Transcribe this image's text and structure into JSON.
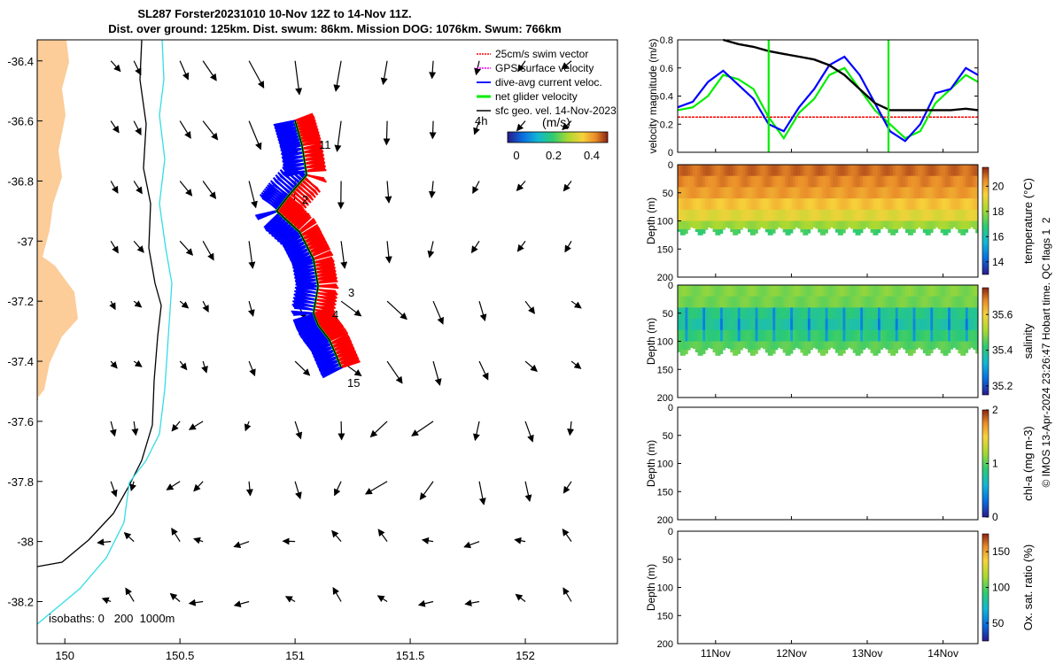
{
  "title": {
    "line1": "SL287 Forster20231010 10-Nov 12Z to 14-Nov 11Z.",
    "line2": "Dist. over ground: 125km. Dist. swum: 86km. Mission DOG: 1076km. Swum: 766km"
  },
  "credit": "© IMOS 13-Apr-2024 23:26:47 Hobart time. QC flags 1  2",
  "colors": {
    "land": "#fccc99",
    "isobath_0": "#000000",
    "isobath_200": "#000000",
    "isobath_1000": "#33dde6",
    "swim": "#ff0000",
    "gps": "#ff00ff",
    "current": "#0000ff",
    "net": "#00ee00",
    "geo": "#000000"
  },
  "chart_data": [
    {
      "type": "map",
      "xlim": [
        149.88,
        152.4
      ],
      "ylim": [
        -38.34,
        -36.33
      ],
      "xticks": [
        "150",
        "150.5",
        "151",
        "151.5",
        "152"
      ],
      "yticks": [
        "-36.4",
        "-36.6",
        "-36.8",
        "-37",
        "-37.2",
        "-37.4",
        "-37.6",
        "-37.8",
        "-38",
        "-38.2"
      ],
      "legend": {
        "placement": "top-right",
        "entries": [
          {
            "label": "25cm/s swim vector",
            "color": "#ff0000"
          },
          {
            "label": "GPS surface velocity",
            "color": "#ff00ff"
          },
          {
            "label": "dive-avg current veloc.",
            "color": "#0000ff"
          },
          {
            "label": "net glider velocity",
            "color": "#00ee00"
          },
          {
            "label": "sfc geo. vel. 14-Nov-2023",
            "color": "#000000"
          }
        ]
      },
      "colorbar": {
        "label": "(m/s)",
        "ticks": [
          "0",
          "0.2",
          "0.4"
        ],
        "range": [
          0,
          0.5
        ]
      },
      "isobath_label": "isobaths: 0   200  1000m",
      "annotations": [
        "11",
        "2",
        "3",
        "4",
        "15",
        "4h"
      ],
      "track": {
        "lon": [
          151.0,
          151.03,
          151.05,
          150.97,
          150.92,
          151.02,
          151.08,
          151.1,
          151.08,
          151.1,
          151.15,
          151.2
        ],
        "lat": [
          -36.6,
          -36.68,
          -36.78,
          -36.85,
          -36.9,
          -36.97,
          -37.06,
          -37.15,
          -37.24,
          -37.28,
          -37.33,
          -37.42
        ]
      },
      "arrow_grid": {
        "lon": [
          150.2,
          150.3,
          150.5,
          150.6,
          150.8,
          151.0,
          151.2,
          151.4,
          151.6,
          151.8,
          152.0,
          152.2
        ],
        "lat": [
          -36.4,
          -36.6,
          -36.8,
          -37.0,
          -37.2,
          -37.4,
          -37.6,
          -37.8,
          -38.0,
          -38.2
        ]
      }
    },
    {
      "type": "line",
      "ylabel": "velocity magnitude (m/s)",
      "ylim": [
        0,
        0.8
      ],
      "yticks": [
        "0",
        "0.2",
        "0.4",
        "0.6",
        "0.8"
      ],
      "xlim": [
        10.5,
        14.46
      ],
      "x": [
        10.5,
        10.7,
        10.9,
        11.1,
        11.3,
        11.5,
        11.7,
        11.9,
        12.1,
        12.3,
        12.5,
        12.7,
        12.9,
        13.1,
        13.3,
        13.5,
        13.7,
        13.9,
        14.1,
        14.3,
        14.46
      ],
      "series": [
        {
          "color": "#ff0000",
          "values": [
            0.25,
            0.25,
            0.25,
            0.25,
            0.25,
            0.25,
            0.25,
            0.25,
            0.25,
            0.25,
            0.25,
            0.25,
            0.25,
            0.25,
            0.25,
            0.25,
            0.25,
            0.25,
            0.25,
            0.25,
            0.25
          ]
        },
        {
          "color": "#00ee00",
          "values": [
            0.3,
            0.32,
            0.4,
            0.55,
            0.52,
            0.45,
            0.25,
            0.1,
            0.28,
            0.38,
            0.55,
            0.6,
            0.45,
            0.3,
            0.2,
            0.1,
            0.15,
            0.35,
            0.45,
            0.55,
            0.5
          ]
        },
        {
          "color": "#0000ff",
          "values": [
            0.32,
            0.36,
            0.5,
            0.58,
            0.48,
            0.38,
            0.2,
            0.15,
            0.32,
            0.45,
            0.62,
            0.68,
            0.55,
            0.35,
            0.15,
            0.08,
            0.2,
            0.42,
            0.45,
            0.6,
            0.55
          ]
        },
        {
          "color": "#000000",
          "values": [
            null,
            null,
            null,
            0.8,
            0.77,
            0.75,
            0.72,
            0.7,
            0.68,
            0.66,
            0.62,
            0.55,
            0.45,
            0.35,
            0.3,
            0.3,
            0.3,
            0.3,
            0.3,
            0.31,
            0.3
          ]
        }
      ]
    },
    {
      "type": "heatmap",
      "ylabel": "Depth (m)",
      "clabel": "temperature (°C)",
      "cticks": [
        "14",
        "16",
        "18",
        "20"
      ],
      "crange": [
        13,
        21.5
      ],
      "yticks": [
        "0",
        "50",
        "100",
        "150",
        "200"
      ],
      "ylim": [
        0,
        200
      ],
      "profile_depths": [
        0,
        20,
        40,
        60,
        80,
        100,
        115,
        125
      ],
      "profile_values": [
        20.8,
        20.5,
        20.2,
        19.6,
        19.0,
        18.0,
        17.0,
        16.3
      ],
      "max_depth": 125
    },
    {
      "type": "heatmap",
      "ylabel": "Depth (m)",
      "clabel": "salinity",
      "cticks": [
        "35.2",
        "35.4",
        "35.6"
      ],
      "crange": [
        35.15,
        35.75
      ],
      "yticks": [
        "0",
        "50",
        "100",
        "150",
        "200"
      ],
      "ylim": [
        0,
        200
      ],
      "profile_depths": [
        0,
        20,
        40,
        60,
        80,
        100,
        115,
        125
      ],
      "profile_values": [
        35.48,
        35.47,
        35.4,
        35.38,
        35.42,
        35.45,
        35.46,
        35.47
      ],
      "max_depth": 125
    },
    {
      "type": "heatmap",
      "ylabel": "Depth (m)",
      "clabel": "chl-a (mg m-3)",
      "cticks": [
        "0",
        "1",
        "2"
      ],
      "crange": [
        0,
        2
      ],
      "yticks": [
        "0",
        "50",
        "100",
        "150",
        "200"
      ],
      "ylim": [
        0,
        200
      ]
    },
    {
      "type": "heatmap",
      "ylabel": "Depth (m)",
      "clabel": "Ox. sat. ratio (%)",
      "cticks": [
        "50",
        "100",
        "150"
      ],
      "crange": [
        25,
        175
      ],
      "yticks": [
        "0",
        "50",
        "100",
        "150",
        "200"
      ],
      "ylim": [
        0,
        200
      ],
      "xticks": [
        "11Nov",
        "12Nov",
        "13Nov",
        "14Nov"
      ]
    }
  ]
}
